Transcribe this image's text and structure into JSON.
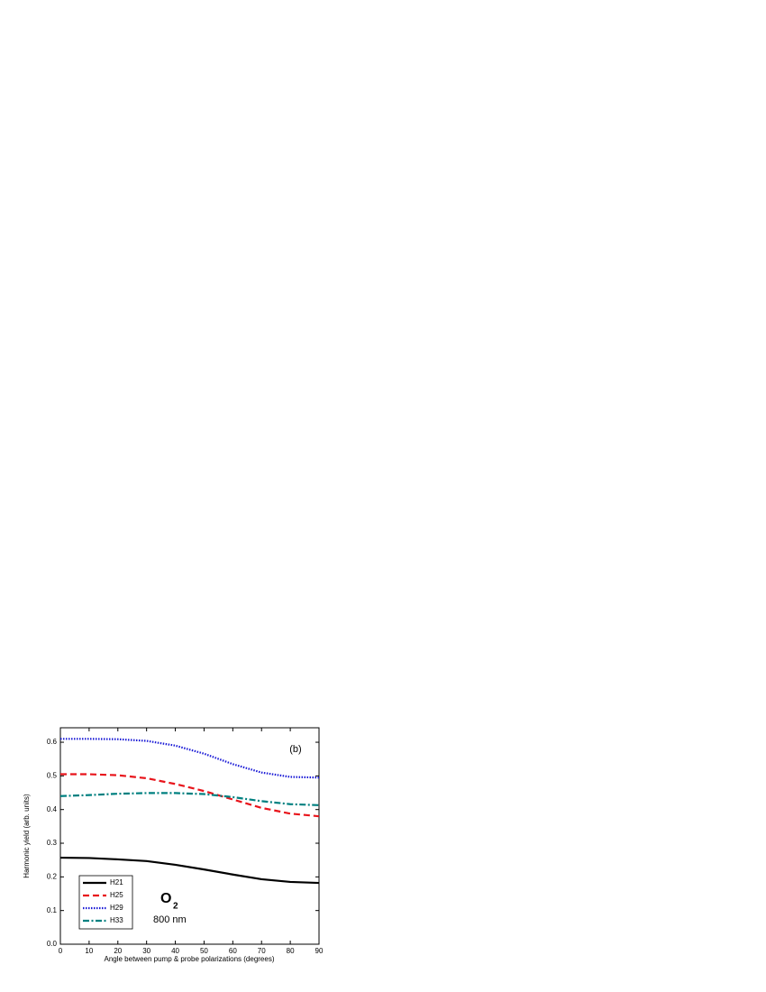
{
  "chart_data": {
    "type": "line",
    "xlabel": "Angle between pump & probe polarizations (degrees)",
    "ylabel": "Harmonic yield (arb. units)",
    "panel_label": "(b)",
    "annotation": {
      "text": "O",
      "subscript": "2",
      "line2": "800 nm"
    },
    "x": [
      0,
      10,
      20,
      30,
      40,
      50,
      60,
      70,
      80,
      90
    ],
    "series": [
      {
        "name": "H21",
        "color": "#000000",
        "dash": "solid",
        "values": [
          0.257,
          0.256,
          0.252,
          0.247,
          0.236,
          0.222,
          0.207,
          0.193,
          0.185,
          0.182
        ]
      },
      {
        "name": "H25",
        "color": "#e8141b",
        "dash": "dash",
        "values": [
          0.505,
          0.505,
          0.502,
          0.493,
          0.476,
          0.455,
          0.43,
          0.405,
          0.388,
          0.38
        ]
      },
      {
        "name": "H29",
        "color": "#1a1ad6",
        "dash": "dot",
        "values": [
          0.61,
          0.61,
          0.609,
          0.604,
          0.59,
          0.566,
          0.535,
          0.51,
          0.497,
          0.495
        ]
      },
      {
        "name": "H33",
        "color": "#008080",
        "dash": "dashdot",
        "values": [
          0.44,
          0.443,
          0.447,
          0.449,
          0.449,
          0.446,
          0.437,
          0.425,
          0.416,
          0.413
        ]
      }
    ],
    "xlim": [
      0,
      90
    ],
    "xticks": [
      0,
      10,
      20,
      30,
      40,
      50,
      60,
      70,
      80,
      90
    ],
    "ylim": [
      0,
      0.643
    ],
    "yticks": [
      {
        "value": 0,
        "label": "0.0"
      },
      0.1,
      0.2,
      0.3,
      0.4,
      0.5,
      0.6
    ],
    "legend": "lower left"
  }
}
